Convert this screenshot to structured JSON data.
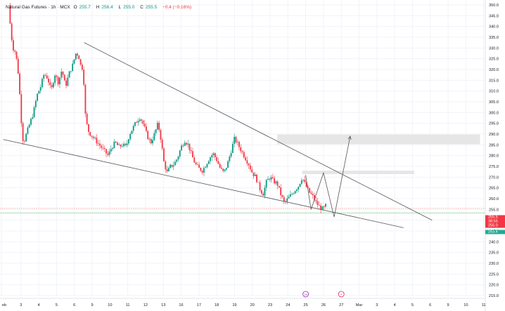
{
  "legend": {
    "symbol": "Natural Gas Futures · 1h · MCX",
    "open_label": "O",
    "open": "255.7",
    "high_label": "H",
    "high": "256.4",
    "low_label": "L",
    "low": "255.0",
    "close_label": "C",
    "close": "255.5",
    "change": "−0.4 (−0.16%)"
  },
  "colors": {
    "up": "#089981",
    "down": "#f23645",
    "line": "#555555",
    "zone": "#e6e6e6",
    "grid": "#f0f3fa",
    "axis_text": "#131722"
  },
  "price_labels": [
    {
      "text": "255.5",
      "color": "#f23645"
    },
    {
      "text": "38:55",
      "color": "#f23645"
    },
    {
      "text": "255.0",
      "color": "#f23645"
    },
    {
      "text": "253.4",
      "color": "#22ab94"
    }
  ],
  "event_icons": [
    {
      "day": "25",
      "name": "earnings-icon",
      "glyph": "25"
    },
    {
      "day": "27",
      "name": "dividend-icon",
      "glyph": "⚡"
    }
  ],
  "chart_data": {
    "type": "candlestick",
    "title": "Natural Gas Futures · 1h · MCX",
    "ylim": [
      215,
      350
    ],
    "y_ticks": [
      215,
      220,
      225,
      230,
      235,
      240,
      245,
      250,
      255,
      260,
      265,
      270,
      275,
      280,
      285,
      290,
      295,
      300,
      305,
      310,
      315,
      320,
      325,
      330,
      335,
      340,
      345,
      350
    ],
    "x_ticks": [
      {
        "label": "eb",
        "day": 1.9
      },
      {
        "label": "3",
        "day": 3
      },
      {
        "label": "4",
        "day": 4
      },
      {
        "label": "5",
        "day": 5
      },
      {
        "label": "6",
        "day": 6
      },
      {
        "label": "9",
        "day": 7
      },
      {
        "label": "10",
        "day": 8
      },
      {
        "label": "11",
        "day": 9
      },
      {
        "label": "12",
        "day": 10
      },
      {
        "label": "13",
        "day": 11
      },
      {
        "label": "16",
        "day": 12
      },
      {
        "label": "17",
        "day": 13
      },
      {
        "label": "18",
        "day": 14
      },
      {
        "label": "19",
        "day": 15
      },
      {
        "label": "20",
        "day": 16
      },
      {
        "label": "23",
        "day": 17
      },
      {
        "label": "24",
        "day": 18
      },
      {
        "label": "25",
        "day": 19
      },
      {
        "label": "26",
        "day": 20
      },
      {
        "label": "27",
        "day": 21
      },
      {
        "label": "Mar",
        "day": 22
      },
      {
        "label": "3",
        "day": 23
      },
      {
        "label": "4",
        "day": 24
      },
      {
        "label": "5",
        "day": 25
      },
      {
        "label": "6",
        "day": 26
      },
      {
        "label": "9",
        "day": 27
      },
      {
        "label": "10",
        "day": 28
      },
      {
        "label": "11",
        "day": 29
      }
    ],
    "close_path": [
      [
        2.3,
        350
      ],
      [
        2.35,
        345
      ],
      [
        2.45,
        336
      ],
      [
        2.55,
        330
      ],
      [
        2.7,
        328
      ],
      [
        2.85,
        318
      ],
      [
        3.0,
        300
      ],
      [
        3.05,
        290
      ],
      [
        3.15,
        286
      ],
      [
        3.3,
        290
      ],
      [
        3.5,
        295
      ],
      [
        3.7,
        300
      ],
      [
        3.9,
        308
      ],
      [
        4.1,
        312
      ],
      [
        4.3,
        318
      ],
      [
        4.5,
        316
      ],
      [
        4.7,
        310
      ],
      [
        4.9,
        318
      ],
      [
        5.1,
        314
      ],
      [
        5.3,
        320
      ],
      [
        5.5,
        312
      ],
      [
        5.7,
        318
      ],
      [
        5.9,
        322
      ],
      [
        6.1,
        328
      ],
      [
        6.25,
        326
      ],
      [
        6.35,
        322
      ],
      [
        6.5,
        320
      ],
      [
        6.6,
        300
      ],
      [
        6.75,
        292
      ],
      [
        6.9,
        290
      ],
      [
        7.1,
        288
      ],
      [
        7.3,
        286
      ],
      [
        7.5,
        284
      ],
      [
        7.7,
        282
      ],
      [
        7.9,
        280
      ],
      [
        8.1,
        284
      ],
      [
        8.3,
        286
      ],
      [
        8.5,
        284
      ],
      [
        8.7,
        285
      ],
      [
        8.9,
        284
      ],
      [
        9.1,
        290
      ],
      [
        9.3,
        293
      ],
      [
        9.5,
        296
      ],
      [
        9.7,
        298
      ],
      [
        9.9,
        294
      ],
      [
        10.1,
        289
      ],
      [
        10.3,
        286
      ],
      [
        10.5,
        290
      ],
      [
        10.7,
        295
      ],
      [
        10.9,
        286
      ],
      [
        11.0,
        278
      ],
      [
        11.2,
        272
      ],
      [
        11.4,
        275
      ],
      [
        11.6,
        276
      ],
      [
        11.8,
        279
      ],
      [
        12.0,
        284
      ],
      [
        12.2,
        287
      ],
      [
        12.4,
        285
      ],
      [
        12.6,
        280
      ],
      [
        12.8,
        276
      ],
      [
        13.0,
        274
      ],
      [
        13.2,
        273
      ],
      [
        13.4,
        276
      ],
      [
        13.6,
        279
      ],
      [
        13.8,
        281
      ],
      [
        14.0,
        278
      ],
      [
        14.2,
        274
      ],
      [
        14.4,
        272
      ],
      [
        14.6,
        276
      ],
      [
        14.8,
        282
      ],
      [
        15.0,
        288
      ],
      [
        15.2,
        285
      ],
      [
        15.4,
        282
      ],
      [
        15.6,
        279
      ],
      [
        15.8,
        276
      ],
      [
        16.0,
        272
      ],
      [
        16.2,
        270
      ],
      [
        16.4,
        265
      ],
      [
        16.6,
        262
      ],
      [
        16.8,
        268
      ],
      [
        17.0,
        270
      ],
      [
        17.2,
        268
      ],
      [
        17.4,
        267
      ],
      [
        17.6,
        262
      ],
      [
        17.8,
        258
      ],
      [
        18.0,
        260
      ],
      [
        18.2,
        262
      ],
      [
        18.4,
        264
      ],
      [
        18.6,
        266
      ],
      [
        18.8,
        270
      ],
      [
        19.0,
        266
      ],
      [
        19.2,
        263
      ],
      [
        19.4,
        261
      ],
      [
        19.6,
        258
      ],
      [
        19.8,
        256
      ],
      [
        20.0,
        255
      ],
      [
        20.1,
        257
      ],
      [
        20.2,
        255.5
      ]
    ],
    "drawings": {
      "upper_trendline": [
        [
          6.55,
          332.5
        ],
        [
          26.1,
          250
        ]
      ],
      "lower_trendline": [
        [
          2.0,
          287.5
        ],
        [
          24.5,
          246.5
        ]
      ],
      "projection_zigzag": [
        [
          19.0,
          271
        ],
        [
          19.3,
          255
        ],
        [
          20.0,
          272
        ],
        [
          20.6,
          251.5
        ],
        [
          21.5,
          289
        ]
      ],
      "zones": [
        [
          17.4,
          28.8,
          285.3,
          289.8
        ],
        [
          18.8,
          25.1,
          271.4,
          273
        ]
      ],
      "horizontal_lines": [
        255.5,
        253.4
      ]
    }
  }
}
